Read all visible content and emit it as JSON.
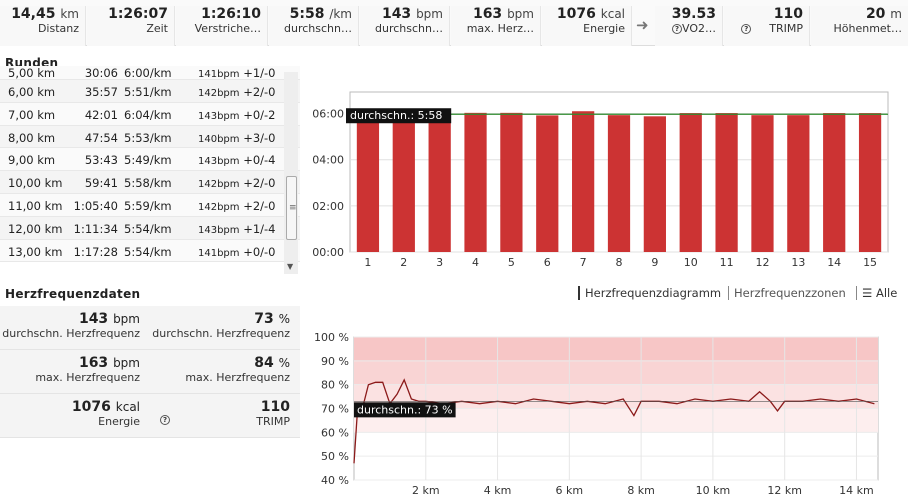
{
  "top_stats": [
    {
      "value": "14,45",
      "unit": "km",
      "label": "Distanz"
    },
    {
      "value": "1:26:07",
      "unit": "",
      "label": "Zeit"
    },
    {
      "value": "1:26:10",
      "unit": "",
      "label": "Verstriche…"
    },
    {
      "value": "5:58",
      "unit": "/km",
      "label": "durchschn…"
    },
    {
      "value": "143",
      "unit": "bpm",
      "label": "durchschn…"
    },
    {
      "value": "163",
      "unit": "bpm",
      "label": "max. Herz…"
    },
    {
      "value": "1076",
      "unit": "kcal",
      "label": "Energie"
    },
    {
      "value": "39.53",
      "unit": "",
      "label": "VO2…"
    },
    {
      "value": "110",
      "unit": "",
      "label": "TRIMP"
    },
    {
      "value": "20",
      "unit": "m",
      "label": "Höhenmet…"
    }
  ],
  "laps_title": "Runden",
  "laps": [
    {
      "dist": "5,00 km",
      "time": "30:06",
      "pace": "6:00/km",
      "hr": "141bpm",
      "delta": "+1/-0"
    },
    {
      "dist": "6,00 km",
      "time": "35:57",
      "pace": "5:51/km",
      "hr": "142bpm",
      "delta": "+2/-0"
    },
    {
      "dist": "7,00 km",
      "time": "42:01",
      "pace": "6:04/km",
      "hr": "143bpm",
      "delta": "+0/-2"
    },
    {
      "dist": "8,00 km",
      "time": "47:54",
      "pace": "5:53/km",
      "hr": "140bpm",
      "delta": "+3/-0"
    },
    {
      "dist": "9,00 km",
      "time": "53:43",
      "pace": "5:49/km",
      "hr": "143bpm",
      "delta": "+0/-4"
    },
    {
      "dist": "10,00 km",
      "time": "59:41",
      "pace": "5:58/km",
      "hr": "142bpm",
      "delta": "+2/-0"
    },
    {
      "dist": "11,00 km",
      "time": "1:05:40",
      "pace": "5:59/km",
      "hr": "142bpm",
      "delta": "+2/-0"
    },
    {
      "dist": "12,00 km",
      "time": "1:11:34",
      "pace": "5:54/km",
      "hr": "143bpm",
      "delta": "+1/-4"
    },
    {
      "dist": "13,00 km",
      "time": "1:17:28",
      "pace": "5:54/km",
      "hr": "141bpm",
      "delta": "+0/-0"
    }
  ],
  "hr_title": "Herzfrequenzdaten",
  "hr_tabs": {
    "diagram": "Herzfrequenzdiagramm",
    "zones": "Herzfrequenzzonen",
    "all": "Alle"
  },
  "hr_stats": [
    {
      "value": "143",
      "unit": "bpm",
      "label": "durchschn. Herzfrequenz"
    },
    {
      "value": "73",
      "unit": "%",
      "label": "durchschn. Herzfrequenz"
    },
    {
      "value": "163",
      "unit": "bpm",
      "label": "max. Herzfrequenz"
    },
    {
      "value": "84",
      "unit": "%",
      "label": "max. Herzfrequenz"
    },
    {
      "value": "1076",
      "unit": "kcal",
      "label": "Energie"
    },
    {
      "value": "110",
      "unit": "",
      "label": "TRIMP"
    }
  ],
  "colors": {
    "bar": "#cc3333",
    "avgline": "#2e8b2e",
    "hrline": "#8b1a1a",
    "zone": "#f9d4d4"
  },
  "chart_data": [
    {
      "type": "bar",
      "categories": [
        "1",
        "2",
        "3",
        "4",
        "5",
        "6",
        "7",
        "8",
        "9",
        "10",
        "11",
        "12",
        "13",
        "14",
        "15"
      ],
      "values": [
        6.02,
        5.95,
        6.1,
        6.03,
        6.03,
        5.92,
        6.1,
        5.93,
        5.88,
        6.02,
        6.02,
        5.93,
        5.93,
        6.02,
        6.02
      ],
      "yticks": [
        "00:00",
        "02:00",
        "04:00",
        "06:00"
      ],
      "ylim": [
        0,
        6.5
      ],
      "average": {
        "label": "durchschn.: 5:58",
        "value": 5.97
      }
    },
    {
      "type": "line",
      "x": [
        0,
        0.1,
        0.2,
        0.4,
        0.6,
        0.8,
        1.0,
        1.2,
        1.4,
        1.6,
        1.8,
        2.0,
        2.5,
        3.0,
        3.5,
        4.0,
        4.5,
        5.0,
        5.5,
        6.0,
        6.5,
        7.0,
        7.5,
        7.8,
        8.0,
        8.5,
        9.0,
        9.5,
        10.0,
        10.5,
        11.0,
        11.3,
        11.6,
        11.8,
        12.0,
        12.5,
        13.0,
        13.5,
        14.0,
        14.5
      ],
      "y": [
        47,
        70,
        68,
        80,
        81,
        81,
        72,
        76,
        82,
        74,
        73,
        73,
        72,
        73,
        72,
        73,
        72,
        74,
        73,
        72,
        73,
        72,
        74,
        67,
        73,
        73,
        72,
        74,
        73,
        74,
        73,
        77,
        73,
        69,
        73,
        73,
        74,
        73,
        74,
        72
      ],
      "xticks": [
        "2 km",
        "4 km",
        "6 km",
        "8 km",
        "10 km",
        "12 km",
        "14 km"
      ],
      "yticks": [
        "40 %",
        "50 %",
        "60 %",
        "70 %",
        "80 %",
        "90 %",
        "100 %"
      ],
      "xlim": [
        0,
        14.6
      ],
      "ylim": [
        40,
        100
      ],
      "average": {
        "label": "durchschn.: 73 %",
        "value": 73
      }
    }
  ]
}
